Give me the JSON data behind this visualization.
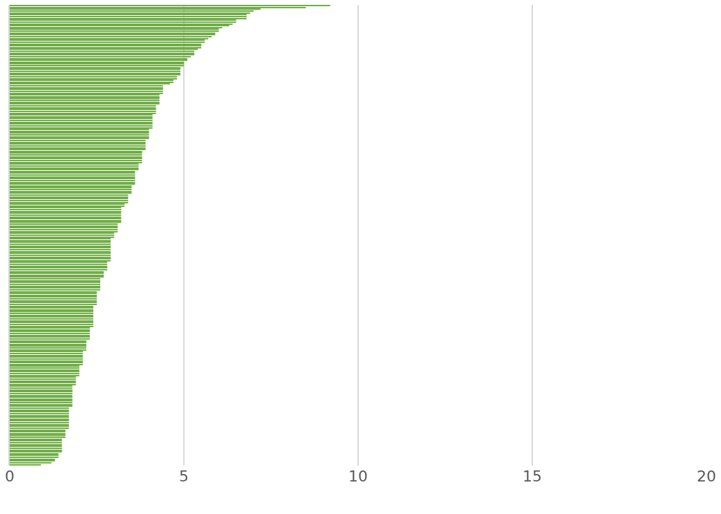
{
  "chart_data": {
    "type": "bar",
    "orientation": "horizontal",
    "color": "#70ad47",
    "xlim": [
      0,
      20
    ],
    "xticks": [
      0,
      5,
      10,
      15,
      20
    ],
    "grid": "x",
    "tick_labels": "x",
    "categories": [
      null,
      null,
      null,
      null,
      null,
      null,
      null,
      null,
      null,
      null,
      null,
      null,
      null,
      null,
      null,
      null,
      null,
      null,
      null,
      null,
      null,
      null,
      null,
      null,
      null,
      null,
      null,
      null,
      null,
      null,
      null,
      null,
      null,
      null,
      null,
      null,
      null,
      null,
      null,
      null,
      null,
      null,
      null,
      null,
      null,
      null,
      null,
      null,
      null,
      null,
      null,
      null,
      null,
      null,
      null,
      null,
      null,
      null,
      null,
      null,
      null,
      null,
      null,
      null,
      null,
      null,
      null,
      null,
      null,
      null,
      null,
      null,
      null,
      null,
      null,
      null,
      null,
      null,
      null,
      null,
      null,
      null,
      null,
      null,
      null,
      null,
      null,
      null,
      null,
      null,
      null,
      null,
      null,
      null,
      null,
      null,
      null,
      null,
      null,
      null,
      null,
      null,
      null,
      null,
      null,
      null,
      null,
      null,
      null,
      null,
      null,
      null,
      null,
      null,
      null,
      null,
      null,
      null,
      null,
      null,
      null,
      null,
      null,
      null,
      null,
      null,
      null,
      null,
      null,
      null,
      null,
      null,
      null,
      null,
      null,
      null,
      null,
      null,
      null,
      null,
      null,
      null,
      null,
      null,
      null,
      null,
      null,
      null,
      null,
      null,
      null,
      null,
      null,
      null,
      null,
      null,
      null,
      null,
      null,
      null,
      null,
      null,
      null,
      null,
      null,
      null,
      null,
      null,
      null,
      null,
      null,
      null,
      null,
      null,
      null,
      null,
      null,
      null,
      null,
      null,
      null,
      null,
      null,
      null,
      null,
      null,
      null,
      null,
      null,
      null,
      null,
      null,
      null,
      null,
      null,
      null,
      null,
      null,
      null,
      null,
      null,
      null,
      null,
      null,
      null,
      null,
      null,
      null,
      null,
      null,
      null,
      null,
      null,
      null,
      null,
      null,
      null,
      null,
      null,
      null,
      null,
      null,
      null,
      null,
      null,
      null,
      null,
      null,
      null,
      null,
      null,
      null,
      null,
      null,
      null,
      null,
      null,
      null,
      null,
      null,
      null,
      null,
      null,
      null,
      null,
      null,
      null,
      null,
      null,
      null,
      null,
      null,
      null
    ],
    "values": [
      9.2,
      8.5,
      7.2,
      7.0,
      6.9,
      6.8,
      6.8,
      6.8,
      6.5,
      6.5,
      6.4,
      6.3,
      6.1,
      6.0,
      6.0,
      5.9,
      5.9,
      5.8,
      5.7,
      5.6,
      5.6,
      5.5,
      5.5,
      5.5,
      5.4,
      5.3,
      5.3,
      5.3,
      5.2,
      5.1,
      5.1,
      5.0,
      5.0,
      5.0,
      4.9,
      4.9,
      4.9,
      4.9,
      4.9,
      4.8,
      4.8,
      4.7,
      4.7,
      4.6,
      4.4,
      4.4,
      4.4,
      4.4,
      4.4,
      4.3,
      4.3,
      4.3,
      4.3,
      4.3,
      4.3,
      4.2,
      4.2,
      4.2,
      4.2,
      4.2,
      4.1,
      4.1,
      4.1,
      4.1,
      4.1,
      4.1,
      4.1,
      4.1,
      4.0,
      4.0,
      4.0,
      4.0,
      4.0,
      4.0,
      3.9,
      3.9,
      3.9,
      3.9,
      3.9,
      3.9,
      3.8,
      3.8,
      3.8,
      3.8,
      3.8,
      3.8,
      3.8,
      3.7,
      3.7,
      3.7,
      3.7,
      3.6,
      3.6,
      3.6,
      3.6,
      3.6,
      3.6,
      3.6,
      3.6,
      3.5,
      3.5,
      3.5,
      3.5,
      3.5,
      3.4,
      3.4,
      3.4,
      3.4,
      3.4,
      3.3,
      3.3,
      3.2,
      3.2,
      3.2,
      3.2,
      3.2,
      3.2,
      3.2,
      3.2,
      3.2,
      3.1,
      3.1,
      3.1,
      3.1,
      3.1,
      3.0,
      3.0,
      3.0,
      2.9,
      2.9,
      2.9,
      2.9,
      2.9,
      2.9,
      2.9,
      2.9,
      2.9,
      2.9,
      2.9,
      2.9,
      2.9,
      2.8,
      2.8,
      2.8,
      2.8,
      2.8,
      2.7,
      2.7,
      2.7,
      2.7,
      2.6,
      2.6,
      2.6,
      2.6,
      2.6,
      2.6,
      2.6,
      2.5,
      2.5,
      2.5,
      2.5,
      2.5,
      2.5,
      2.5,
      2.5,
      2.4,
      2.4,
      2.4,
      2.4,
      2.4,
      2.4,
      2.4,
      2.4,
      2.4,
      2.4,
      2.4,
      2.4,
      2.3,
      2.3,
      2.3,
      2.3,
      2.3,
      2.3,
      2.3,
      2.2,
      2.2,
      2.2,
      2.2,
      2.2,
      2.2,
      2.1,
      2.1,
      2.1,
      2.1,
      2.1,
      2.1,
      2.1,
      2.1,
      2.0,
      2.0,
      2.0,
      2.0,
      2.0,
      2.0,
      1.9,
      1.9,
      1.9,
      1.9,
      1.9,
      1.8,
      1.8,
      1.8,
      1.8,
      1.8,
      1.8,
      1.8,
      1.8,
      1.8,
      1.8,
      1.8,
      1.8,
      1.7,
      1.7,
      1.7,
      1.7,
      1.7,
      1.7,
      1.7,
      1.7,
      1.7,
      1.7,
      1.7,
      1.7,
      1.6,
      1.6,
      1.6,
      1.6,
      1.6,
      1.5,
      1.5,
      1.5,
      1.5,
      1.5,
      1.5,
      1.5,
      1.5,
      1.4,
      1.4,
      1.4,
      1.3,
      1.3,
      1.2,
      0.9
    ]
  }
}
